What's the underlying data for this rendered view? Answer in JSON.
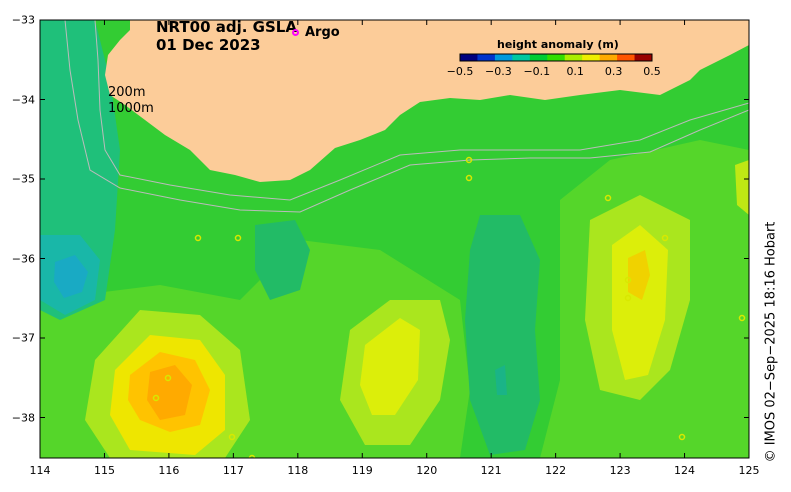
{
  "title": {
    "line1": "NRT00 adj. GSLA",
    "line2": "01 Dec 2023"
  },
  "legend": {
    "argo_label": "Argo",
    "argo_color": "#ff00ff"
  },
  "isobaths": {
    "label_200": "200m",
    "label_1000": "1000m"
  },
  "colorbar": {
    "title": "height anomaly (m)",
    "ticks": [
      "−0.5",
      "−0.3",
      "−0.1",
      "0.1",
      "0.3",
      "0.5"
    ],
    "colors": [
      "#00007f",
      "#0033cc",
      "#0099dd",
      "#00c8a0",
      "#00cc33",
      "#33dd00",
      "#aaee00",
      "#eeee00",
      "#ffaa00",
      "#ff5500",
      "#990000"
    ]
  },
  "axes": {
    "x_ticks": [
      "114",
      "115",
      "116",
      "117",
      "118",
      "119",
      "120",
      "121",
      "122",
      "123",
      "124",
      "125"
    ],
    "y_ticks": [
      "−33",
      "−34",
      "−35",
      "−36",
      "−37",
      "−38"
    ]
  },
  "credit": "© IMOS 02−Sep−2025 18:16 Hobart",
  "colors": {
    "land": "#fccc99",
    "ocean_base": "#33cc33"
  }
}
